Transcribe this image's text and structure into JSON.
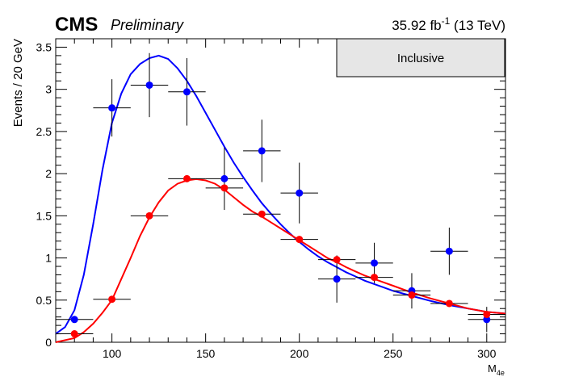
{
  "header": {
    "experiment": "CMS",
    "status": "Preliminary",
    "lumi": "35.92 fb",
    "lumi_exp": "-1",
    "energy": "(13 TeV)"
  },
  "legend": {
    "label": "Inclusive"
  },
  "chart_data": {
    "type": "scatter",
    "xlabel": "M",
    "xlabel_sub": "4e",
    "ylabel": "Events / 20 GeV",
    "xlim": [
      70,
      310
    ],
    "ylim": [
      0,
      3.6
    ],
    "x_ticks": [
      100,
      150,
      200,
      250,
      300
    ],
    "x_tick_labels": [
      "100",
      "150",
      "200",
      "250",
      "300"
    ],
    "y_ticks": [
      0,
      0.5,
      1,
      1.5,
      2,
      2.5,
      3,
      3.5
    ],
    "y_tick_labels": [
      "0",
      "0.5",
      "1",
      "1.5",
      "2",
      "2.5",
      "3",
      "3.5"
    ],
    "bin_half_width": 10,
    "series": [
      {
        "color": "#0000ff",
        "marker": "circle",
        "points": [
          {
            "x": 80,
            "y": 0.27,
            "err": 0.0
          },
          {
            "x": 100,
            "y": 2.78,
            "err": 0.34
          },
          {
            "x": 120,
            "y": 3.05,
            "err": 0.38
          },
          {
            "x": 140,
            "y": 2.97,
            "err": 0.4
          },
          {
            "x": 160,
            "y": 1.94,
            "err": 0.37
          },
          {
            "x": 180,
            "y": 2.27,
            "err": 0.37
          },
          {
            "x": 200,
            "y": 1.77,
            "err": 0.36
          },
          {
            "x": 220,
            "y": 0.75,
            "err": 0.28
          },
          {
            "x": 240,
            "y": 0.94,
            "err": 0.24
          },
          {
            "x": 260,
            "y": 0.61,
            "err": 0.21
          },
          {
            "x": 280,
            "y": 1.08,
            "err": 0.28
          },
          {
            "x": 300,
            "y": 0.27,
            "err": 0.15
          }
        ],
        "curve": [
          [
            70,
            0.1
          ],
          [
            75,
            0.18
          ],
          [
            80,
            0.38
          ],
          [
            85,
            0.8
          ],
          [
            90,
            1.4
          ],
          [
            95,
            2.05
          ],
          [
            100,
            2.6
          ],
          [
            105,
            2.95
          ],
          [
            110,
            3.18
          ],
          [
            115,
            3.3
          ],
          [
            120,
            3.37
          ],
          [
            125,
            3.4
          ],
          [
            130,
            3.36
          ],
          [
            135,
            3.25
          ],
          [
            140,
            3.1
          ],
          [
            145,
            2.92
          ],
          [
            150,
            2.72
          ],
          [
            155,
            2.52
          ],
          [
            160,
            2.32
          ],
          [
            165,
            2.13
          ],
          [
            170,
            1.96
          ],
          [
            175,
            1.8
          ],
          [
            180,
            1.65
          ],
          [
            185,
            1.52
          ],
          [
            190,
            1.4
          ],
          [
            195,
            1.29
          ],
          [
            200,
            1.19
          ],
          [
            205,
            1.1
          ],
          [
            210,
            1.02
          ],
          [
            215,
            0.95
          ],
          [
            220,
            0.89
          ],
          [
            225,
            0.83
          ],
          [
            230,
            0.78
          ],
          [
            235,
            0.73
          ],
          [
            240,
            0.69
          ],
          [
            245,
            0.65
          ],
          [
            250,
            0.61
          ],
          [
            260,
            0.55
          ],
          [
            270,
            0.49
          ],
          [
            280,
            0.44
          ],
          [
            290,
            0.4
          ],
          [
            300,
            0.36
          ],
          [
            310,
            0.34
          ]
        ]
      },
      {
        "color": "#ff0000",
        "marker": "circle",
        "points": [
          {
            "x": 80,
            "y": 0.1,
            "err": 0.0
          },
          {
            "x": 100,
            "y": 0.51,
            "err": 0.0
          },
          {
            "x": 120,
            "y": 1.5,
            "err": 0.0
          },
          {
            "x": 140,
            "y": 1.94,
            "err": 0.0
          },
          {
            "x": 160,
            "y": 1.83,
            "err": 0.0
          },
          {
            "x": 180,
            "y": 1.52,
            "err": 0.0
          },
          {
            "x": 200,
            "y": 1.22,
            "err": 0.0
          },
          {
            "x": 220,
            "y": 0.98,
            "err": 0.0
          },
          {
            "x": 240,
            "y": 0.77,
            "err": 0.0
          },
          {
            "x": 260,
            "y": 0.56,
            "err": 0.0
          },
          {
            "x": 280,
            "y": 0.46,
            "err": 0.0
          },
          {
            "x": 300,
            "y": 0.33,
            "err": 0.0
          }
        ],
        "curve": [
          [
            70,
            0.0
          ],
          [
            80,
            0.05
          ],
          [
            85,
            0.12
          ],
          [
            90,
            0.22
          ],
          [
            95,
            0.35
          ],
          [
            100,
            0.5
          ],
          [
            105,
            0.75
          ],
          [
            110,
            1.0
          ],
          [
            115,
            1.26
          ],
          [
            120,
            1.48
          ],
          [
            125,
            1.66
          ],
          [
            130,
            1.8
          ],
          [
            135,
            1.88
          ],
          [
            140,
            1.92
          ],
          [
            145,
            1.935
          ],
          [
            150,
            1.92
          ],
          [
            155,
            1.88
          ],
          [
            160,
            1.81
          ],
          [
            165,
            1.72
          ],
          [
            170,
            1.63
          ],
          [
            175,
            1.55
          ],
          [
            180,
            1.49
          ],
          [
            185,
            1.42
          ],
          [
            190,
            1.35
          ],
          [
            195,
            1.28
          ],
          [
            200,
            1.21
          ],
          [
            205,
            1.14
          ],
          [
            210,
            1.07
          ],
          [
            215,
            1.0
          ],
          [
            220,
            0.95
          ],
          [
            225,
            0.89
          ],
          [
            230,
            0.84
          ],
          [
            235,
            0.79
          ],
          [
            240,
            0.75
          ],
          [
            245,
            0.71
          ],
          [
            250,
            0.67
          ],
          [
            260,
            0.59
          ],
          [
            270,
            0.52
          ],
          [
            280,
            0.46
          ],
          [
            290,
            0.4
          ],
          [
            300,
            0.36
          ],
          [
            310,
            0.34
          ]
        ]
      }
    ]
  }
}
